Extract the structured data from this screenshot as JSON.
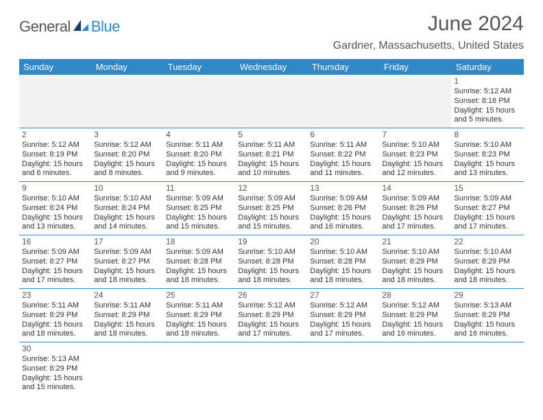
{
  "brand": {
    "part1": "General",
    "part2": "Blue"
  },
  "title": "June 2024",
  "location": "Gardner, Massachusetts, United States",
  "colors": {
    "header_bg": "#2f87c7",
    "header_text": "#ffffff",
    "border": "#2f87c7",
    "filler_bg": "#f2f2f2",
    "text": "#333333",
    "muted": "#555555"
  },
  "daynames": [
    "Sunday",
    "Monday",
    "Tuesday",
    "Wednesday",
    "Thursday",
    "Friday",
    "Saturday"
  ],
  "weeks": [
    [
      null,
      null,
      null,
      null,
      null,
      null,
      {
        "n": "1",
        "sr": "Sunrise: 5:12 AM",
        "ss": "Sunset: 8:18 PM",
        "dl1": "Daylight: 15 hours",
        "dl2": "and 5 minutes."
      }
    ],
    [
      {
        "n": "2",
        "sr": "Sunrise: 5:12 AM",
        "ss": "Sunset: 8:19 PM",
        "dl1": "Daylight: 15 hours",
        "dl2": "and 6 minutes."
      },
      {
        "n": "3",
        "sr": "Sunrise: 5:12 AM",
        "ss": "Sunset: 8:20 PM",
        "dl1": "Daylight: 15 hours",
        "dl2": "and 8 minutes."
      },
      {
        "n": "4",
        "sr": "Sunrise: 5:11 AM",
        "ss": "Sunset: 8:20 PM",
        "dl1": "Daylight: 15 hours",
        "dl2": "and 9 minutes."
      },
      {
        "n": "5",
        "sr": "Sunrise: 5:11 AM",
        "ss": "Sunset: 8:21 PM",
        "dl1": "Daylight: 15 hours",
        "dl2": "and 10 minutes."
      },
      {
        "n": "6",
        "sr": "Sunrise: 5:11 AM",
        "ss": "Sunset: 8:22 PM",
        "dl1": "Daylight: 15 hours",
        "dl2": "and 11 minutes."
      },
      {
        "n": "7",
        "sr": "Sunrise: 5:10 AM",
        "ss": "Sunset: 8:23 PM",
        "dl1": "Daylight: 15 hours",
        "dl2": "and 12 minutes."
      },
      {
        "n": "8",
        "sr": "Sunrise: 5:10 AM",
        "ss": "Sunset: 8:23 PM",
        "dl1": "Daylight: 15 hours",
        "dl2": "and 13 minutes."
      }
    ],
    [
      {
        "n": "9",
        "sr": "Sunrise: 5:10 AM",
        "ss": "Sunset: 8:24 PM",
        "dl1": "Daylight: 15 hours",
        "dl2": "and 13 minutes."
      },
      {
        "n": "10",
        "sr": "Sunrise: 5:10 AM",
        "ss": "Sunset: 8:24 PM",
        "dl1": "Daylight: 15 hours",
        "dl2": "and 14 minutes."
      },
      {
        "n": "11",
        "sr": "Sunrise: 5:09 AM",
        "ss": "Sunset: 8:25 PM",
        "dl1": "Daylight: 15 hours",
        "dl2": "and 15 minutes."
      },
      {
        "n": "12",
        "sr": "Sunrise: 5:09 AM",
        "ss": "Sunset: 8:25 PM",
        "dl1": "Daylight: 15 hours",
        "dl2": "and 15 minutes."
      },
      {
        "n": "13",
        "sr": "Sunrise: 5:09 AM",
        "ss": "Sunset: 8:26 PM",
        "dl1": "Daylight: 15 hours",
        "dl2": "and 16 minutes."
      },
      {
        "n": "14",
        "sr": "Sunrise: 5:09 AM",
        "ss": "Sunset: 8:26 PM",
        "dl1": "Daylight: 15 hours",
        "dl2": "and 17 minutes."
      },
      {
        "n": "15",
        "sr": "Sunrise: 5:09 AM",
        "ss": "Sunset: 8:27 PM",
        "dl1": "Daylight: 15 hours",
        "dl2": "and 17 minutes."
      }
    ],
    [
      {
        "n": "16",
        "sr": "Sunrise: 5:09 AM",
        "ss": "Sunset: 8:27 PM",
        "dl1": "Daylight: 15 hours",
        "dl2": "and 17 minutes."
      },
      {
        "n": "17",
        "sr": "Sunrise: 5:09 AM",
        "ss": "Sunset: 8:27 PM",
        "dl1": "Daylight: 15 hours",
        "dl2": "and 18 minutes."
      },
      {
        "n": "18",
        "sr": "Sunrise: 5:09 AM",
        "ss": "Sunset: 8:28 PM",
        "dl1": "Daylight: 15 hours",
        "dl2": "and 18 minutes."
      },
      {
        "n": "19",
        "sr": "Sunrise: 5:10 AM",
        "ss": "Sunset: 8:28 PM",
        "dl1": "Daylight: 15 hours",
        "dl2": "and 18 minutes."
      },
      {
        "n": "20",
        "sr": "Sunrise: 5:10 AM",
        "ss": "Sunset: 8:28 PM",
        "dl1": "Daylight: 15 hours",
        "dl2": "and 18 minutes."
      },
      {
        "n": "21",
        "sr": "Sunrise: 5:10 AM",
        "ss": "Sunset: 8:29 PM",
        "dl1": "Daylight: 15 hours",
        "dl2": "and 18 minutes."
      },
      {
        "n": "22",
        "sr": "Sunrise: 5:10 AM",
        "ss": "Sunset: 8:29 PM",
        "dl1": "Daylight: 15 hours",
        "dl2": "and 18 minutes."
      }
    ],
    [
      {
        "n": "23",
        "sr": "Sunrise: 5:11 AM",
        "ss": "Sunset: 8:29 PM",
        "dl1": "Daylight: 15 hours",
        "dl2": "and 18 minutes."
      },
      {
        "n": "24",
        "sr": "Sunrise: 5:11 AM",
        "ss": "Sunset: 8:29 PM",
        "dl1": "Daylight: 15 hours",
        "dl2": "and 18 minutes."
      },
      {
        "n": "25",
        "sr": "Sunrise: 5:11 AM",
        "ss": "Sunset: 8:29 PM",
        "dl1": "Daylight: 15 hours",
        "dl2": "and 18 minutes."
      },
      {
        "n": "26",
        "sr": "Sunrise: 5:12 AM",
        "ss": "Sunset: 8:29 PM",
        "dl1": "Daylight: 15 hours",
        "dl2": "and 17 minutes."
      },
      {
        "n": "27",
        "sr": "Sunrise: 5:12 AM",
        "ss": "Sunset: 8:29 PM",
        "dl1": "Daylight: 15 hours",
        "dl2": "and 17 minutes."
      },
      {
        "n": "28",
        "sr": "Sunrise: 5:12 AM",
        "ss": "Sunset: 8:29 PM",
        "dl1": "Daylight: 15 hours",
        "dl2": "and 16 minutes."
      },
      {
        "n": "29",
        "sr": "Sunrise: 5:13 AM",
        "ss": "Sunset: 8:29 PM",
        "dl1": "Daylight: 15 hours",
        "dl2": "and 16 minutes."
      }
    ],
    [
      {
        "n": "30",
        "sr": "Sunrise: 5:13 AM",
        "ss": "Sunset: 8:29 PM",
        "dl1": "Daylight: 15 hours",
        "dl2": "and 15 minutes."
      },
      null,
      null,
      null,
      null,
      null,
      null
    ]
  ]
}
